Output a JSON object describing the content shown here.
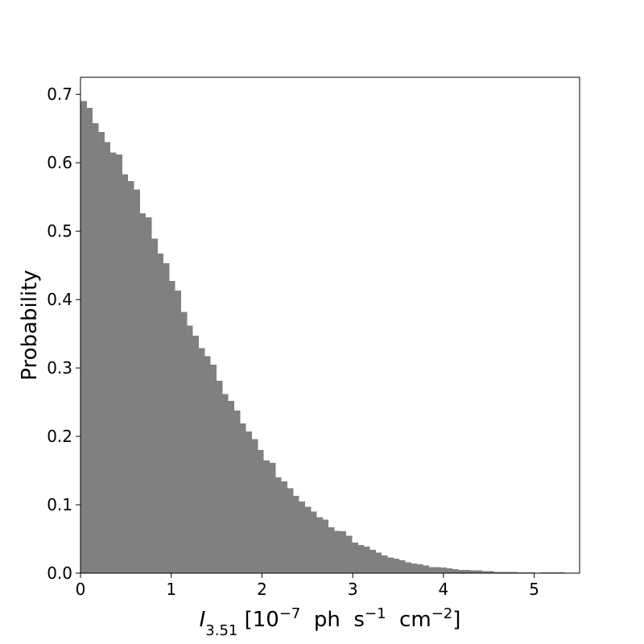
{
  "chart_data": {
    "type": "histogram",
    "bins": [
      0,
      0.065,
      0.13,
      0.195,
      0.26,
      0.325,
      0.39,
      0.455,
      0.52,
      0.585,
      0.65,
      0.715,
      0.78,
      0.845,
      0.91,
      0.975,
      1.04,
      1.105,
      1.17,
      1.235,
      1.3,
      1.365,
      1.43,
      1.495,
      1.56,
      1.625,
      1.69,
      1.755,
      1.82,
      1.885,
      1.95,
      2.015,
      2.08,
      2.145,
      2.21,
      2.275,
      2.34,
      2.405,
      2.47,
      2.535,
      2.6,
      2.665,
      2.73,
      2.795,
      2.86,
      2.925,
      2.99,
      3.055,
      3.12,
      3.185,
      3.25,
      3.315,
      3.38,
      3.445,
      3.51,
      3.575,
      3.64,
      3.705,
      3.77,
      3.835,
      3.9,
      3.965,
      4.03,
      4.095,
      4.16,
      4.225,
      4.29,
      4.355,
      4.42,
      4.485,
      4.55,
      4.615,
      4.68,
      4.745,
      4.81,
      4.875,
      4.94,
      5.005,
      5.07,
      5.135,
      5.2,
      5.265,
      5.33
    ],
    "values": [
      0.69,
      0.68,
      0.658,
      0.645,
      0.63,
      0.615,
      0.612,
      0.583,
      0.573,
      0.561,
      0.526,
      0.52,
      0.489,
      0.467,
      0.453,
      0.427,
      0.413,
      0.382,
      0.362,
      0.347,
      0.329,
      0.317,
      0.305,
      0.281,
      0.262,
      0.252,
      0.238,
      0.219,
      0.207,
      0.196,
      0.18,
      0.165,
      0.161,
      0.14,
      0.134,
      0.124,
      0.113,
      0.105,
      0.097,
      0.09,
      0.082,
      0.078,
      0.067,
      0.062,
      0.061,
      0.055,
      0.045,
      0.041,
      0.039,
      0.034,
      0.03,
      0.026,
      0.023,
      0.021,
      0.019,
      0.016,
      0.014,
      0.013,
      0.011,
      0.009,
      0.009,
      0.008,
      0.007,
      0.006,
      0.005,
      0.005,
      0.004,
      0.004,
      0.003,
      0.003,
      0.002,
      0.002,
      0.002,
      0.002,
      0.001,
      0.001,
      0.001,
      0.0005,
      0.001,
      0.001,
      0.001,
      0.001
    ],
    "color": "#808080",
    "xlim": [
      0,
      5.5
    ],
    "ylim": [
      0,
      0.725
    ],
    "xticks": [
      0,
      1,
      2,
      3,
      4,
      5
    ],
    "yticks": [
      {
        "value": 0,
        "label": "0.0"
      },
      0.1,
      0.2,
      0.3,
      0.4,
      0.5,
      0.6,
      0.7
    ],
    "ylabel": "Probability",
    "xlabel": [
      {
        "text": "I",
        "format": "italic"
      },
      {
        "text": "3.51",
        "format": "sub"
      },
      {
        "text": " [10",
        "format": "normal"
      },
      {
        "text": "−7",
        "format": "sup"
      },
      {
        "text": "  ph  s",
        "format": "normal"
      },
      {
        "text": "−1",
        "format": "sup"
      },
      {
        "text": "  cm",
        "format": "normal"
      },
      {
        "text": "−2",
        "format": "sup"
      },
      {
        "text": "]",
        "format": "normal"
      }
    ]
  }
}
